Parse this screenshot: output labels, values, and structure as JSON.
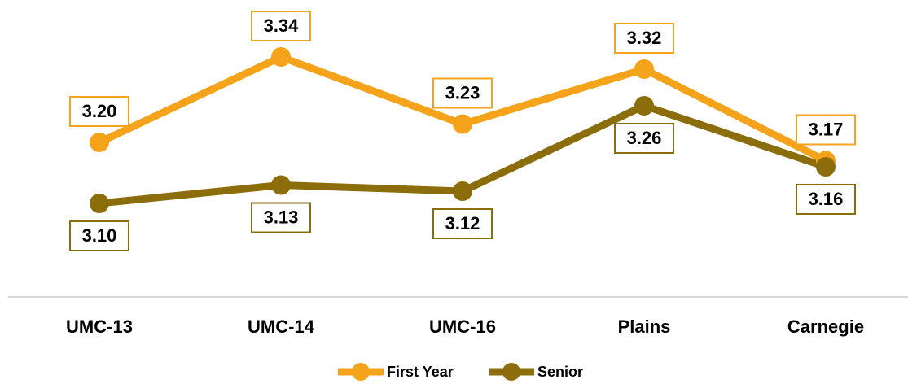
{
  "chart_data": {
    "type": "line",
    "categories": [
      "UMC-13",
      "UMC-14",
      "UMC-16",
      "Plains",
      "Carnegie"
    ],
    "series": [
      {
        "name": "First Year",
        "color": "#F5A31A",
        "values": [
          3.2,
          3.34,
          3.23,
          3.32,
          3.17
        ],
        "value_labels": [
          "3.20",
          "3.34",
          "3.23",
          "3.32",
          "3.17"
        ]
      },
      {
        "name": "Senior",
        "color": "#8B6D0C",
        "values": [
          3.1,
          3.13,
          3.12,
          3.26,
          3.16
        ],
        "value_labels": [
          "3.10",
          "3.13",
          "3.12",
          "3.26",
          "3.16"
        ]
      }
    ]
  }
}
